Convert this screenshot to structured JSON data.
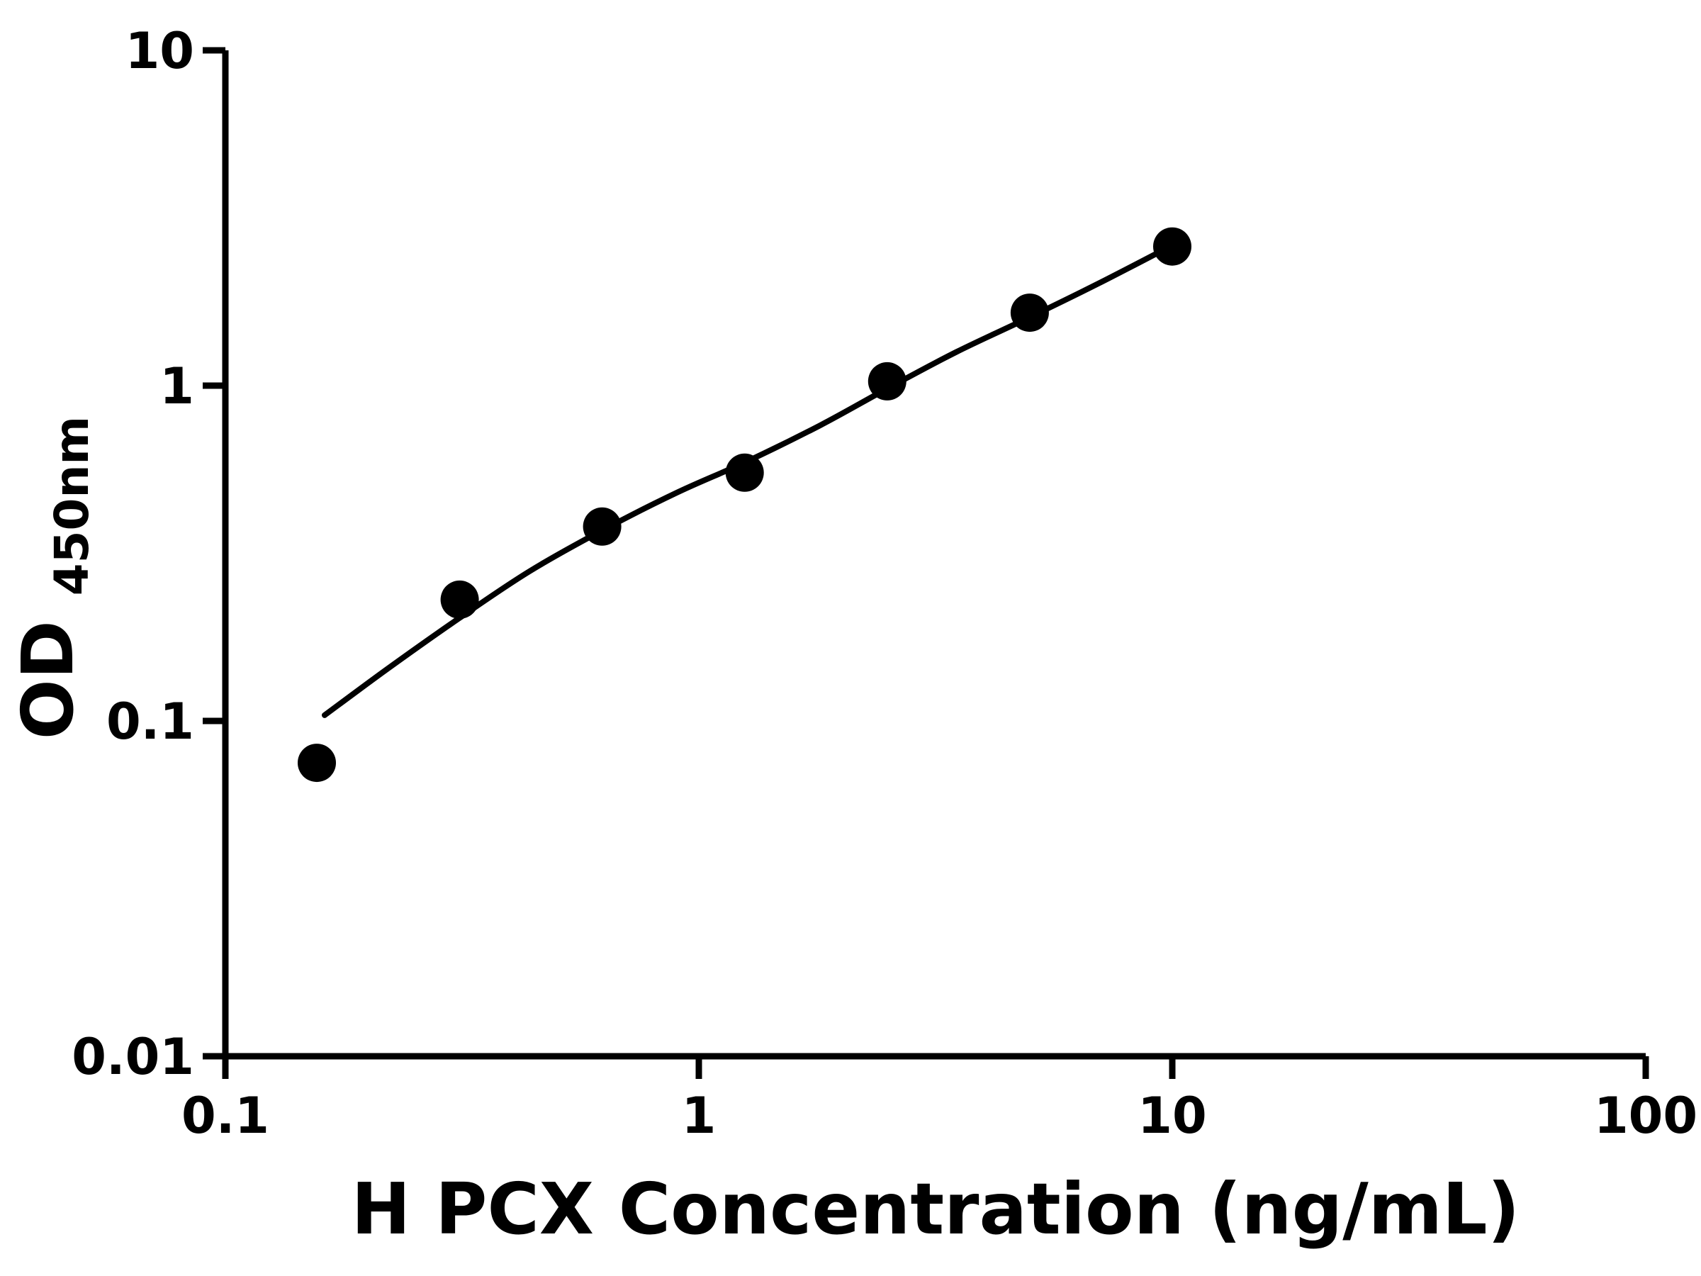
{
  "chart_data": {
    "type": "scatter",
    "title": "",
    "xlabel": "H PCX Concentration (ng/mL)",
    "ylabel": "OD450nm",
    "ylabel_main": "OD",
    "ylabel_sub": "450nm",
    "x_scale": "log",
    "y_scale": "log",
    "xlim": [
      0.1,
      100
    ],
    "ylim": [
      0.01,
      10
    ],
    "x_ticks": [
      0.1,
      1,
      10,
      100
    ],
    "x_tick_labels": [
      "0.1",
      "1",
      "10",
      "100"
    ],
    "y_ticks": [
      0.01,
      0.1,
      1,
      10
    ],
    "y_tick_labels": [
      "0.01",
      "0.1",
      "1",
      "10"
    ],
    "grid": "off",
    "legend": "none",
    "series": [
      {
        "x": [
          0.156,
          0.3125,
          0.625,
          1.25,
          2.5,
          5,
          10
        ],
        "y": [
          0.075,
          0.23,
          0.38,
          0.55,
          1.03,
          1.65,
          2.6
        ]
      }
    ],
    "fit_curve": [
      [
        0.162,
        0.104
      ],
      [
        0.22,
        0.143
      ],
      [
        0.3125,
        0.203
      ],
      [
        0.44,
        0.28
      ],
      [
        0.625,
        0.37
      ],
      [
        0.9,
        0.48
      ],
      [
        1.25,
        0.59
      ],
      [
        1.8,
        0.76
      ],
      [
        2.5,
        0.98
      ],
      [
        3.5,
        1.26
      ],
      [
        5,
        1.6
      ],
      [
        7,
        2.02
      ],
      [
        10,
        2.62
      ]
    ],
    "colors": {
      "ink": "#000000",
      "background": "#ffffff"
    }
  }
}
